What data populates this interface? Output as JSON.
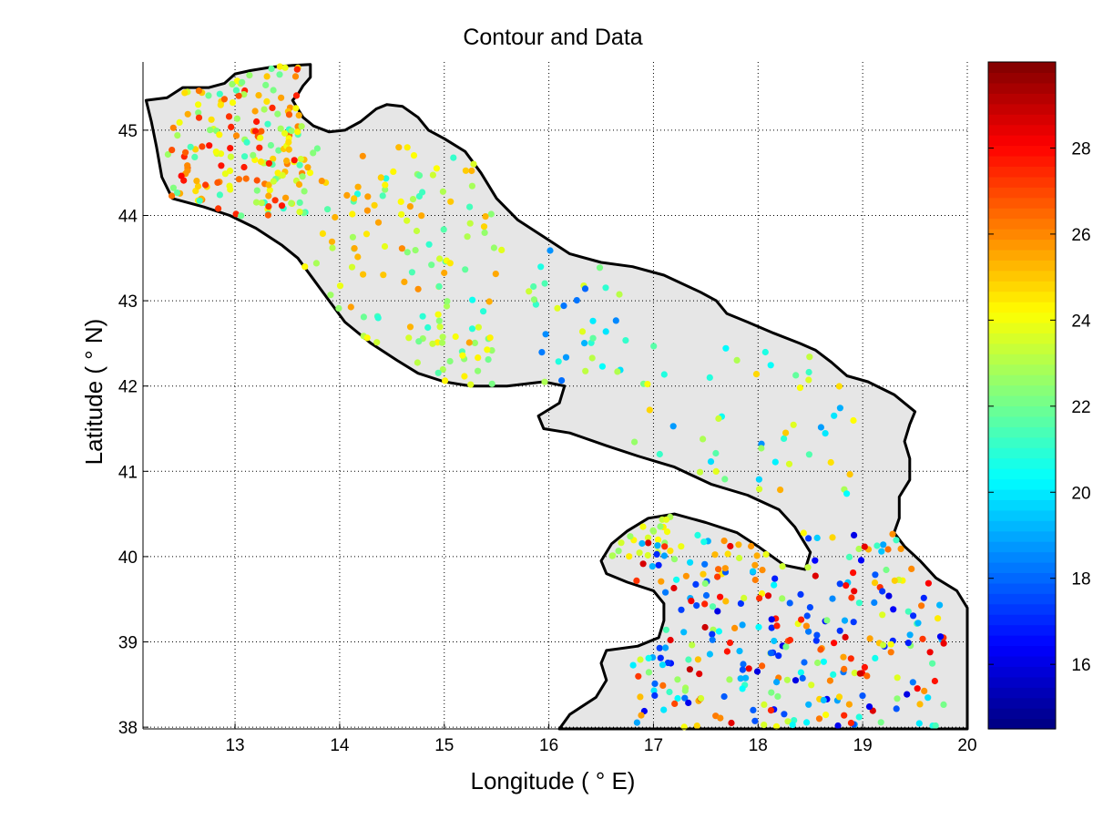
{
  "chart_data": {
    "type": "scatter",
    "title": "Contour and Data",
    "xlabel": "Longitude ( ° E)",
    "ylabel": "Latitude ( ° N)",
    "xlim": [
      12.12,
      20.0
    ],
    "ylim": [
      37.98,
      45.8
    ],
    "xticks": [
      13,
      14,
      15,
      16,
      17,
      18,
      19,
      20
    ],
    "yticks": [
      38,
      39,
      40,
      41,
      42,
      43,
      44,
      45
    ],
    "grid": true,
    "colorbar": {
      "colormap": "jet",
      "range": [
        14.5,
        30.0
      ],
      "ticks": [
        16,
        18,
        20,
        22,
        24,
        26,
        28
      ]
    },
    "land_mask_color": "#e6e6e6",
    "coastline_color": "#000000",
    "coastline": [
      [
        12.15,
        45.35
      ],
      [
        12.35,
        45.38
      ],
      [
        12.5,
        45.5
      ],
      [
        12.75,
        45.5
      ],
      [
        12.9,
        45.55
      ],
      [
        13.0,
        45.66
      ],
      [
        13.15,
        45.7
      ],
      [
        13.35,
        45.74
      ],
      [
        13.55,
        45.76
      ],
      [
        13.72,
        45.77
      ],
      [
        13.72,
        45.62
      ],
      [
        13.65,
        45.52
      ],
      [
        13.6,
        45.42
      ],
      [
        13.55,
        45.35
      ],
      [
        13.6,
        45.25
      ],
      [
        13.65,
        45.15
      ],
      [
        13.75,
        45.05
      ],
      [
        13.9,
        44.98
      ],
      [
        14.05,
        45.0
      ],
      [
        14.2,
        45.1
      ],
      [
        14.35,
        45.25
      ],
      [
        14.45,
        45.3
      ],
      [
        14.6,
        45.28
      ],
      [
        14.75,
        45.15
      ],
      [
        14.85,
        45.0
      ],
      [
        15.0,
        44.9
      ],
      [
        15.2,
        44.75
      ],
      [
        15.35,
        44.5
      ],
      [
        15.5,
        44.2
      ],
      [
        15.7,
        43.95
      ],
      [
        15.95,
        43.75
      ],
      [
        16.2,
        43.55
      ],
      [
        16.5,
        43.45
      ],
      [
        16.8,
        43.4
      ],
      [
        17.1,
        43.3
      ],
      [
        17.45,
        43.1
      ],
      [
        17.6,
        43.0
      ],
      [
        17.7,
        42.85
      ],
      [
        17.9,
        42.75
      ],
      [
        18.15,
        42.62
      ],
      [
        18.4,
        42.5
      ],
      [
        18.55,
        42.42
      ],
      [
        18.7,
        42.28
      ],
      [
        18.85,
        42.12
      ],
      [
        19.05,
        42.05
      ],
      [
        19.3,
        41.9
      ],
      [
        19.4,
        41.8
      ],
      [
        19.5,
        41.7
      ],
      [
        19.45,
        41.55
      ],
      [
        19.4,
        41.35
      ],
      [
        19.45,
        41.15
      ],
      [
        19.45,
        40.9
      ],
      [
        19.35,
        40.7
      ],
      [
        19.35,
        40.45
      ],
      [
        19.3,
        40.28
      ],
      [
        19.4,
        40.12
      ],
      [
        19.55,
        39.95
      ],
      [
        19.7,
        39.75
      ],
      [
        19.9,
        39.6
      ],
      [
        20.0,
        39.4
      ],
      [
        20.0,
        37.98
      ],
      [
        16.1,
        37.98
      ],
      [
        16.2,
        38.15
      ],
      [
        16.45,
        38.35
      ],
      [
        16.55,
        38.55
      ],
      [
        16.5,
        38.75
      ],
      [
        16.55,
        38.9
      ],
      [
        16.85,
        38.95
      ],
      [
        17.05,
        39.05
      ],
      [
        17.1,
        39.25
      ],
      [
        17.1,
        39.45
      ],
      [
        17.0,
        39.6
      ],
      [
        16.75,
        39.7
      ],
      [
        16.55,
        39.8
      ],
      [
        16.5,
        39.95
      ],
      [
        16.6,
        40.15
      ],
      [
        16.75,
        40.3
      ],
      [
        16.95,
        40.45
      ],
      [
        17.2,
        40.5
      ],
      [
        17.5,
        40.4
      ],
      [
        17.8,
        40.28
      ],
      [
        18.0,
        40.12
      ],
      [
        18.25,
        39.9
      ],
      [
        18.45,
        39.85
      ],
      [
        18.5,
        40.05
      ],
      [
        18.35,
        40.35
      ],
      [
        18.2,
        40.55
      ],
      [
        17.9,
        40.72
      ],
      [
        17.55,
        40.85
      ],
      [
        17.2,
        41.05
      ],
      [
        16.85,
        41.18
      ],
      [
        16.55,
        41.3
      ],
      [
        16.2,
        41.45
      ],
      [
        15.95,
        41.5
      ],
      [
        15.9,
        41.65
      ],
      [
        16.1,
        41.8
      ],
      [
        16.15,
        42.0
      ],
      [
        15.95,
        42.05
      ],
      [
        15.6,
        42.0
      ],
      [
        15.25,
        42.0
      ],
      [
        15.0,
        42.05
      ],
      [
        14.75,
        42.15
      ],
      [
        14.55,
        42.3
      ],
      [
        14.3,
        42.5
      ],
      [
        14.05,
        42.75
      ],
      [
        13.9,
        43.0
      ],
      [
        13.75,
        43.25
      ],
      [
        13.6,
        43.5
      ],
      [
        13.45,
        43.65
      ],
      [
        13.2,
        43.85
      ],
      [
        12.95,
        44.0
      ],
      [
        12.7,
        44.1
      ],
      [
        12.4,
        44.2
      ],
      [
        12.3,
        44.45
      ],
      [
        12.25,
        44.8
      ],
      [
        12.2,
        45.1
      ],
      [
        12.15,
        45.35
      ]
    ],
    "point_groups": [
      {
        "range": [
          12.35,
          13.7,
          43.95,
          45.75
        ],
        "count": 180,
        "vmin": 21.0,
        "vmax": 28.0,
        "seed": 1
      },
      {
        "range": [
          13.6,
          15.6,
          42.5,
          44.8
        ],
        "count": 120,
        "vmin": 20.5,
        "vmax": 26.0,
        "seed": 2
      },
      {
        "range": [
          14.6,
          15.5,
          41.95,
          42.6
        ],
        "count": 22,
        "vmin": 21.5,
        "vmax": 24.5,
        "seed": 3
      },
      {
        "range": [
          15.8,
          16.8,
          42.0,
          43.6
        ],
        "count": 34,
        "vmin": 18.0,
        "vmax": 24.0,
        "seed": 4
      },
      {
        "range": [
          16.6,
          19.2,
          40.6,
          42.5
        ],
        "count": 48,
        "vmin": 18.5,
        "vmax": 25.5,
        "seed": 5
      },
      {
        "range": [
          16.6,
          17.3,
          40.0,
          40.5
        ],
        "count": 24,
        "vmin": 22.5,
        "vmax": 24.5,
        "seed": 6
      },
      {
        "range": [
          16.8,
          19.8,
          38.0,
          40.3
        ],
        "count": 300,
        "vmin": 16.0,
        "vmax": 29.0,
        "seed": 7
      }
    ]
  }
}
